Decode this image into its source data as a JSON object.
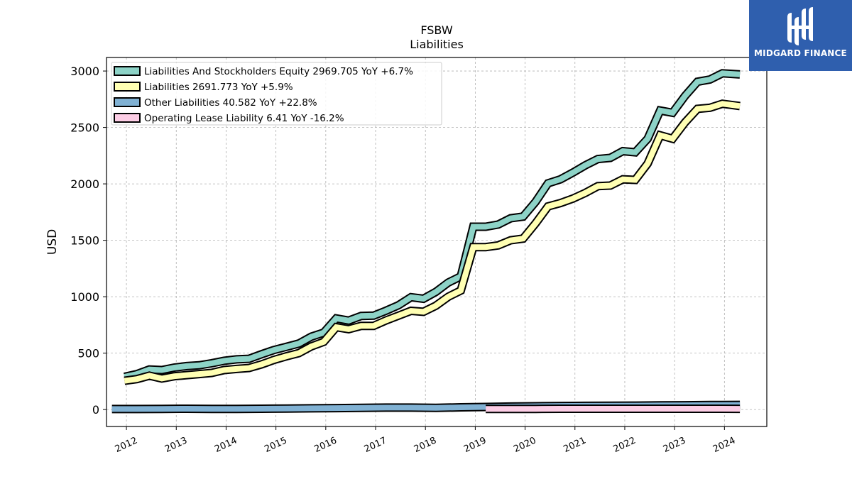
{
  "logo": {
    "text": "MIDGARD FINANCE"
  },
  "chart_data": {
    "type": "line",
    "title": "FSBW",
    "subtitle": "Liabilities",
    "ylabel": "USD",
    "xlabel": "",
    "xlim": [
      2011.6,
      2024.85
    ],
    "ylim": [
      -150,
      3120
    ],
    "yticks": [
      0,
      500,
      1000,
      1500,
      2000,
      2500,
      3000
    ],
    "ytick_labels": [
      "0",
      "500",
      "1000",
      "1500",
      "2000",
      "2500",
      "3000"
    ],
    "xticks": [
      2012,
      2013,
      2014,
      2015,
      2016,
      2017,
      2018,
      2019,
      2020,
      2021,
      2022,
      2023,
      2024
    ],
    "xtick_labels": [
      "2012",
      "2013",
      "2014",
      "2015",
      "2016",
      "2017",
      "2018",
      "2019",
      "2020",
      "2021",
      "2022",
      "2023",
      "2024"
    ],
    "grid": true,
    "legend_position": "top-left",
    "series": [
      {
        "name": "Liabilities And Stockholders Equity",
        "legend": "Liabilities And Stockholders Equity  2969.705 YoY +6.7%",
        "color": "#8dd3c7",
        "x": [
          2011.96,
          2012.21,
          2012.46,
          2012.71,
          2012.96,
          2013.21,
          2013.46,
          2013.71,
          2013.96,
          2014.21,
          2014.46,
          2014.71,
          2014.96,
          2015.21,
          2015.46,
          2015.71,
          2015.96,
          2016.21,
          2016.46,
          2016.71,
          2016.96,
          2017.21,
          2017.46,
          2017.71,
          2017.96,
          2018.21,
          2018.46,
          2018.71,
          2018.96,
          2019.21,
          2019.46,
          2019.71,
          2019.96,
          2020.21,
          2020.46,
          2020.71,
          2020.96,
          2021.21,
          2021.46,
          2021.71,
          2021.96,
          2022.21,
          2022.46,
          2022.71,
          2022.96,
          2023.21,
          2023.46,
          2023.71,
          2023.96,
          2024.31
        ],
        "values": [
          290,
          315,
          355,
          350,
          372,
          385,
          392,
          410,
          432,
          445,
          450,
          490,
          528,
          556,
          585,
          646,
          682,
          808,
          788,
          830,
          832,
          876,
          925,
          996,
          982,
          1043,
          1126,
          1180,
          1620,
          1620,
          1640,
          1695,
          1710,
          1840,
          2005,
          2040,
          2100,
          2165,
          2220,
          2230,
          2290,
          2280,
          2400,
          2650,
          2630,
          2780,
          2905,
          2925,
          2980,
          2970
        ]
      },
      {
        "name": "Liabilities",
        "legend": "Liabilities  2691.773 YoY +5.9%",
        "color": "#ffffb3",
        "x": [
          2011.96,
          2012.21,
          2012.46,
          2012.71,
          2012.96,
          2013.21,
          2013.46,
          2013.71,
          2013.96,
          2014.21,
          2014.46,
          2014.71,
          2014.96,
          2015.21,
          2015.46,
          2015.71,
          2015.96,
          2016.21,
          2016.46,
          2016.71,
          2016.96,
          2017.21,
          2017.46,
          2017.71,
          2017.96,
          2018.21,
          2018.46,
          2018.71,
          2018.96,
          2019.21,
          2019.46,
          2019.71,
          2019.96,
          2020.21,
          2020.46,
          2020.71,
          2020.96,
          2021.21,
          2021.46,
          2021.71,
          2021.96,
          2022.21,
          2022.46,
          2022.71,
          2022.96,
          2023.21,
          2023.46,
          2023.71,
          2023.96,
          2024.31
        ],
        "values": [
          255,
          270,
          300,
          275,
          295,
          305,
          315,
          325,
          350,
          360,
          368,
          400,
          440,
          472,
          500,
          560,
          600,
          730,
          712,
          742,
          742,
          790,
          832,
          875,
          866,
          920,
          1000,
          1055,
          1440,
          1440,
          1455,
          1500,
          1515,
          1650,
          1800,
          1830,
          1870,
          1920,
          1980,
          1985,
          2040,
          2035,
          2180,
          2430,
          2400,
          2545,
          2665,
          2675,
          2710,
          2690
        ]
      },
      {
        "name": "Other Liabilities",
        "legend": "Other Liabilities  40.582 YoY +22.8%",
        "color": "#80b1d3",
        "x": [
          2011.71,
          2012.21,
          2012.71,
          2013.21,
          2013.71,
          2014.21,
          2014.71,
          2015.21,
          2015.71,
          2016.21,
          2016.71,
          2017.21,
          2017.71,
          2018.21,
          2018.71,
          2019.21,
          2019.71,
          2020.21,
          2020.71,
          2021.21,
          2021.71,
          2022.21,
          2022.71,
          2023.21,
          2023.71,
          2024.31
        ],
        "values": [
          5,
          5,
          6,
          7,
          6,
          6,
          7,
          9,
          11,
          13,
          15,
          17,
          17,
          15,
          20,
          23,
          27,
          29,
          32,
          33,
          34,
          35,
          37,
          38,
          40,
          41
        ]
      },
      {
        "name": "Operating Lease Liability",
        "legend": "Operating Lease Liability  6.41 YoY -16.2%",
        "color": "#fccde5",
        "x": [
          2019.21,
          2019.71,
          2020.21,
          2020.71,
          2021.21,
          2021.71,
          2022.21,
          2022.71,
          2023.21,
          2023.71,
          2024.31
        ],
        "values": [
          6,
          6,
          6,
          7,
          7,
          7,
          7,
          7,
          7,
          7,
          6.4
        ]
      }
    ]
  }
}
